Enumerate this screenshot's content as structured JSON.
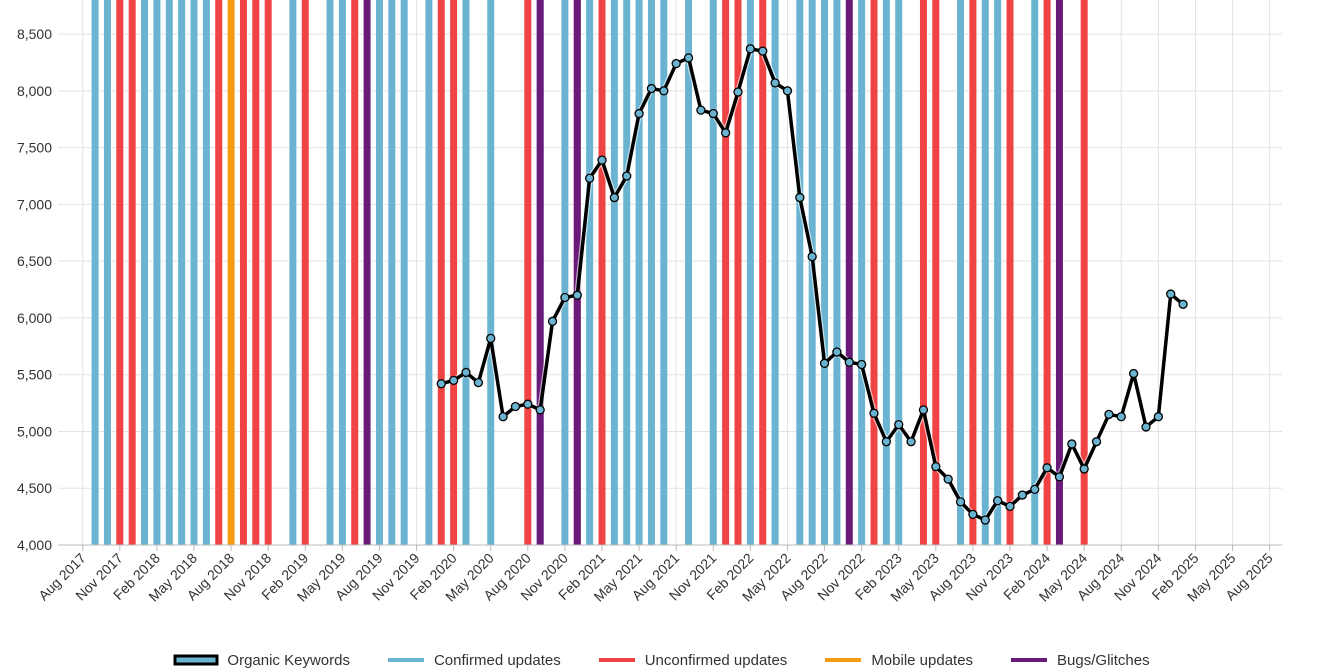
{
  "chart_data": {
    "type": "line",
    "x": [
      "2020-01",
      "2020-02",
      "2020-03",
      "2020-04",
      "2020-05",
      "2020-06",
      "2020-07",
      "2020-08",
      "2020-09",
      "2020-10",
      "2020-11",
      "2020-12",
      "2021-01",
      "2021-02",
      "2021-03",
      "2021-04",
      "2021-05",
      "2021-06",
      "2021-07",
      "2021-08",
      "2021-09",
      "2021-10",
      "2021-11",
      "2021-12",
      "2022-01",
      "2022-02",
      "2022-03",
      "2022-04",
      "2022-05",
      "2022-06",
      "2022-07",
      "2022-08",
      "2022-09",
      "2022-10",
      "2022-11",
      "2022-12",
      "2023-01",
      "2023-02",
      "2023-03",
      "2023-04",
      "2023-05",
      "2023-06",
      "2023-07",
      "2023-08",
      "2023-09",
      "2023-10",
      "2023-11",
      "2023-12",
      "2024-01",
      "2024-02",
      "2024-03",
      "2024-04",
      "2024-05",
      "2024-06",
      "2024-07",
      "2024-08",
      "2024-09",
      "2024-10",
      "2024-11",
      "2024-12",
      "2025-01"
    ],
    "series": [
      {
        "name": "Organic Keywords",
        "color": "#6ab4d2",
        "line_color": "#000000",
        "values": [
          5420,
          5450,
          5520,
          5430,
          5820,
          5130,
          5220,
          5240,
          5190,
          5970,
          6180,
          6200,
          7230,
          7390,
          7060,
          7250,
          7800,
          8020,
          8000,
          8240,
          8290,
          7830,
          7800,
          7630,
          7990,
          8370,
          8350,
          8070,
          8000,
          7060,
          6540,
          5600,
          5700,
          5610,
          5590,
          5160,
          4910,
          5060,
          4910,
          5190,
          4690,
          4580,
          4380,
          4270,
          4220,
          4390,
          4340,
          4440,
          4490,
          4680,
          4600,
          4890,
          4670,
          4910,
          5150,
          5130,
          5510,
          5040,
          5130,
          6210,
          6120
        ]
      }
    ],
    "event_series": [
      {
        "name": "Confirmed updates",
        "color": "#6ab4d2",
        "dates": [
          "2017-09",
          "2017-10",
          "2018-01",
          "2018-02",
          "2018-03",
          "2018-04",
          "2018-05",
          "2018-06",
          "2019-01",
          "2019-04",
          "2019-05",
          "2019-08",
          "2019-09",
          "2019-10",
          "2019-12",
          "2020-03",
          "2020-05",
          "2020-09",
          "2020-11",
          "2021-01",
          "2021-03",
          "2021-04",
          "2021-05",
          "2021-06",
          "2021-07",
          "2021-09",
          "2021-11",
          "2022-02",
          "2022-04",
          "2022-06",
          "2022-07",
          "2022-08",
          "2022-09",
          "2022-11",
          "2023-01",
          "2023-02",
          "2023-07",
          "2023-09",
          "2023-10",
          "2024-01"
        ]
      },
      {
        "name": "Unconfirmed updates",
        "color": "#f04444",
        "dates": [
          "2017-11",
          "2017-12",
          "2018-07",
          "2018-09",
          "2018-10",
          "2018-11",
          "2019-02",
          "2019-06",
          "2020-01",
          "2020-02",
          "2020-08",
          "2020-12",
          "2021-02",
          "2021-12",
          "2022-01",
          "2022-03",
          "2022-12",
          "2023-04",
          "2023-05",
          "2023-08",
          "2023-11",
          "2024-02",
          "2024-05"
        ]
      },
      {
        "name": "Mobile updates",
        "color": "#f39c12",
        "dates": [
          "2018-08"
        ]
      },
      {
        "name": "Bugs/Glitches",
        "color": "#6a1b7a",
        "dates": [
          "2019-07",
          "2020-09",
          "2020-12",
          "2022-10",
          "2024-03"
        ]
      }
    ],
    "xlim": [
      "2017-06",
      "2025-09"
    ],
    "xticks": [
      {
        "value": "2017-08",
        "label": "Aug 2017"
      },
      {
        "value": "2017-11",
        "label": "Nov 2017"
      },
      {
        "value": "2018-02",
        "label": "Feb 2018"
      },
      {
        "value": "2018-05",
        "label": "May 2018"
      },
      {
        "value": "2018-08",
        "label": "Aug 2018"
      },
      {
        "value": "2018-11",
        "label": "Nov 2018"
      },
      {
        "value": "2019-02",
        "label": "Feb 2019"
      },
      {
        "value": "2019-05",
        "label": "May 2019"
      },
      {
        "value": "2019-08",
        "label": "Aug 2019"
      },
      {
        "value": "2019-11",
        "label": "Nov 2019"
      },
      {
        "value": "2020-02",
        "label": "Feb 2020"
      },
      {
        "value": "2020-05",
        "label": "May 2020"
      },
      {
        "value": "2020-08",
        "label": "Aug 2020"
      },
      {
        "value": "2020-11",
        "label": "Nov 2020"
      },
      {
        "value": "2021-02",
        "label": "Feb 2021"
      },
      {
        "value": "2021-05",
        "label": "May 2021"
      },
      {
        "value": "2021-08",
        "label": "Aug 2021"
      },
      {
        "value": "2021-11",
        "label": "Nov 2021"
      },
      {
        "value": "2022-02",
        "label": "Feb 2022"
      },
      {
        "value": "2022-05",
        "label": "May 2022"
      },
      {
        "value": "2022-08",
        "label": "Aug 2022"
      },
      {
        "value": "2022-11",
        "label": "Nov 2022"
      },
      {
        "value": "2023-02",
        "label": "Feb 2023"
      },
      {
        "value": "2023-05",
        "label": "May 2023"
      },
      {
        "value": "2023-08",
        "label": "Aug 2023"
      },
      {
        "value": "2023-11",
        "label": "Nov 2023"
      },
      {
        "value": "2024-02",
        "label": "Feb 2024"
      },
      {
        "value": "2024-05",
        "label": "May 2024"
      },
      {
        "value": "2024-08",
        "label": "Aug 2024"
      },
      {
        "value": "2024-11",
        "label": "Nov 2024"
      },
      {
        "value": "2025-02",
        "label": "Feb 2025"
      },
      {
        "value": "2025-05",
        "label": "May 2025"
      },
      {
        "value": "2025-08",
        "label": "Aug 2025"
      }
    ],
    "ylim": [
      4000,
      8800
    ],
    "yticks": [
      {
        "value": 4000,
        "label": "4,000"
      },
      {
        "value": 4500,
        "label": "4,500"
      },
      {
        "value": 5000,
        "label": "5,000"
      },
      {
        "value": 5500,
        "label": "5,500"
      },
      {
        "value": 6000,
        "label": "6,000"
      },
      {
        "value": 6500,
        "label": "6,500"
      },
      {
        "value": 7000,
        "label": "7,000"
      },
      {
        "value": 7500,
        "label": "7,500"
      },
      {
        "value": 8000,
        "label": "8,000"
      },
      {
        "value": 8500,
        "label": "8,500"
      }
    ],
    "grid": true,
    "legend": "bottom"
  }
}
